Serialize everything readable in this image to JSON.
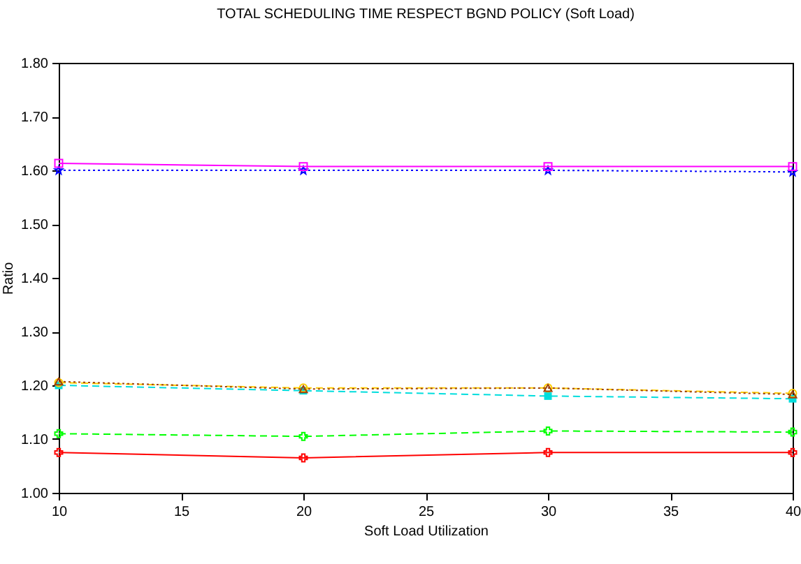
{
  "chart_data": {
    "type": "line",
    "title": "TOTAL SCHEDULING TIME RESPECT BGND POLICY  (Soft Load)",
    "xlabel": "Soft Load Utilization",
    "ylabel": "Ratio",
    "x": [
      10,
      20,
      30,
      40
    ],
    "series": [
      {
        "color": "#ff0000",
        "marker": "cross",
        "line_style": "solid",
        "values": [
          1.075,
          1.065,
          1.075,
          1.075
        ]
      },
      {
        "color": "#00ff00",
        "marker": "cross",
        "line_style": "dashed",
        "values": [
          1.11,
          1.105,
          1.115,
          1.113
        ]
      },
      {
        "color": "#0000ff",
        "marker": "star",
        "line_style": "dotted",
        "values": [
          1.6,
          1.6,
          1.6,
          1.597
        ]
      },
      {
        "color": "#ff00ff",
        "marker": "square",
        "line_style": "solid",
        "values": [
          1.613,
          1.607,
          1.607,
          1.607
        ]
      },
      {
        "color": "#00dddd",
        "marker": "square",
        "line_style": "dashed",
        "values": [
          1.2,
          1.19,
          1.18,
          1.175
        ]
      },
      {
        "color": "#ffcc00",
        "marker": "circle",
        "line_style": "dashed",
        "values": [
          1.205,
          1.195,
          1.195,
          1.185
        ]
      },
      {
        "color": "#a0400a",
        "marker": "triangle",
        "line_style": "dotted",
        "values": [
          1.207,
          1.193,
          1.195,
          1.183
        ]
      }
    ],
    "xlim": [
      10,
      40
    ],
    "xticks": [
      10,
      15,
      20,
      25,
      30,
      35,
      40
    ],
    "ylim": [
      1.0,
      1.8
    ],
    "yticks": [
      {
        "value": 1.0,
        "label": "1.00"
      },
      {
        "value": 1.1,
        "label": "1.10"
      },
      {
        "value": 1.2,
        "label": "1.20"
      },
      {
        "value": 1.3,
        "label": "1.30"
      },
      {
        "value": 1.4,
        "label": "1.40"
      },
      {
        "value": 1.5,
        "label": "1.50"
      },
      {
        "value": 1.6,
        "label": "1.60"
      },
      {
        "value": 1.7,
        "label": "1.70"
      },
      {
        "value": 1.8,
        "label": "1.80"
      }
    ],
    "grid": false
  }
}
